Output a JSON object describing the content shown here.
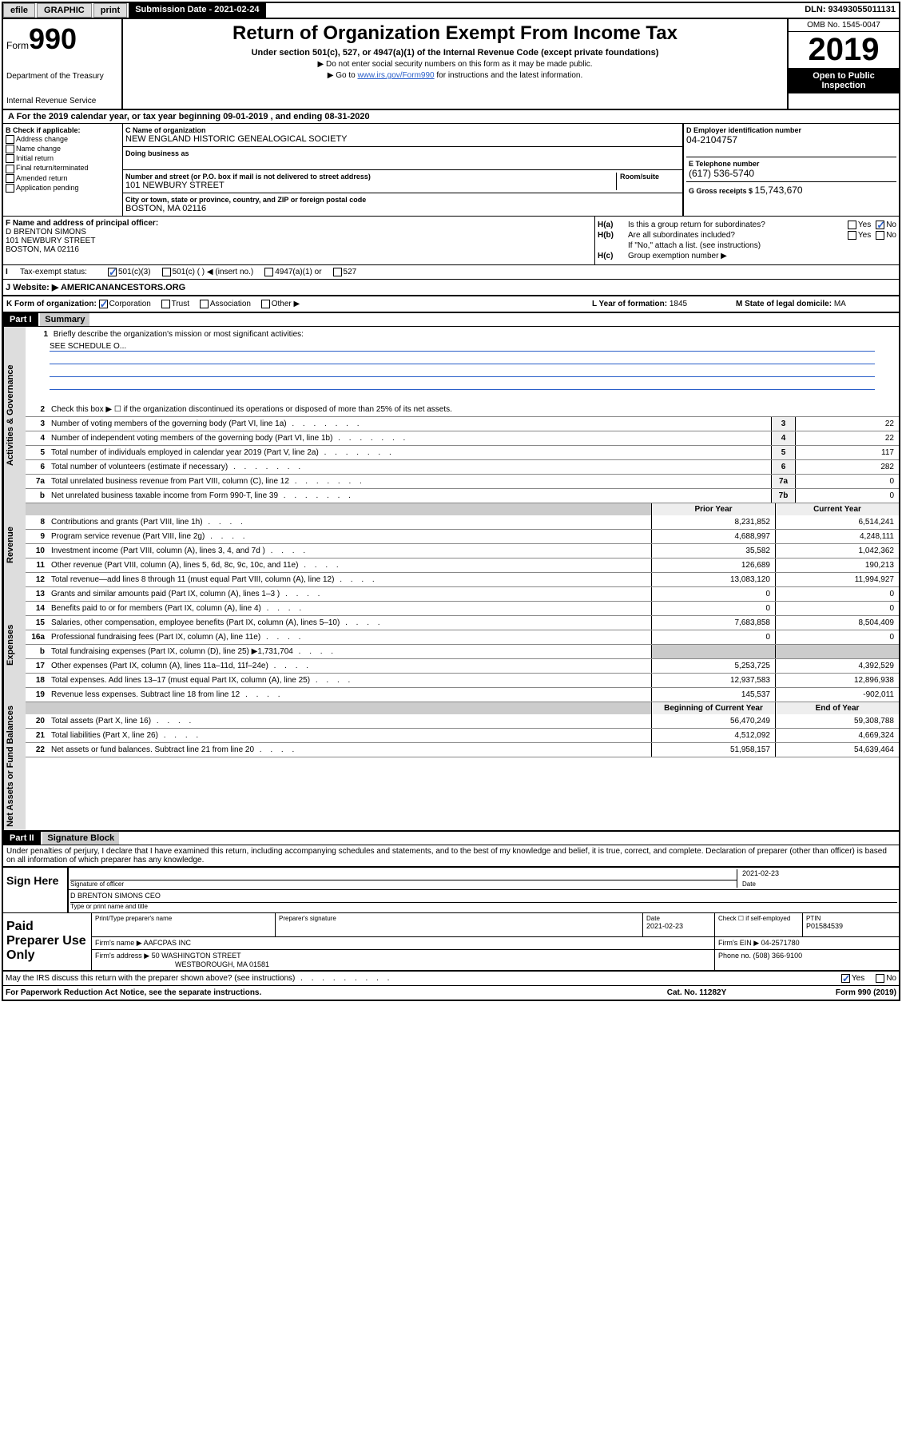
{
  "header": {
    "efile": "efile",
    "graphic_btn": "GRAPHIC",
    "print_btn": "print",
    "submission_label": "Submission Date - 2021-02-24",
    "dln": "DLN: 93493055011131"
  },
  "top": {
    "form_label": "Form",
    "form_no": "990",
    "title": "Return of Organization Exempt From Income Tax",
    "subtitle": "Under section 501(c), 527, or 4947(a)(1) of the Internal Revenue Code (except private foundations)",
    "instr1": "▶ Do not enter social security numbers on this form as it may be made public.",
    "instr2_pre": "▶ Go to ",
    "instr2_link": "www.irs.gov/Form990",
    "instr2_post": " for instructions and the latest information.",
    "dept1": "Department of the Treasury",
    "dept2": "Internal Revenue Service",
    "omb": "OMB No. 1545-0047",
    "year": "2019",
    "open1": "Open to Public",
    "open2": "Inspection"
  },
  "tax_year": {
    "text": "A For the 2019 calendar year, or tax year beginning 09-01-2019     , and ending 08-31-2020"
  },
  "section_b": {
    "label": "B Check if applicable:",
    "items": [
      "Address change",
      "Name change",
      "Initial return",
      "Final return/terminated",
      "Amended return",
      "Application pending"
    ]
  },
  "section_c": {
    "label": "C Name of organization",
    "name": "NEW ENGLAND HISTORIC GENEALOGICAL SOCIETY",
    "dba_label": "Doing business as",
    "addr_label": "Number and street (or P.O. box if mail is not delivered to street address)",
    "room_label": "Room/suite",
    "addr": "101 NEWBURY STREET",
    "city_label": "City or town, state or province, country, and ZIP or foreign postal code",
    "city": "BOSTON, MA  02116"
  },
  "section_d": {
    "label": "D Employer identification number",
    "value": "04-2104757"
  },
  "section_e": {
    "label": "E Telephone number",
    "value": "(617) 536-5740"
  },
  "section_g": {
    "label": "G Gross receipts $ ",
    "value": "15,743,670"
  },
  "section_f": {
    "label": "F  Name and address of principal officer:",
    "name": "D BRENTON SIMONS",
    "addr1": "101 NEWBURY STREET",
    "addr2": "BOSTON, MA  02116"
  },
  "section_h": {
    "ha_label": "H(a)",
    "ha_text": "Is this a group return for subordinates?",
    "hb_label": "H(b)",
    "hb_text": "Are all subordinates included?",
    "hb_note": "If \"No,\" attach a list. (see instructions)",
    "hc_label": "H(c)",
    "hc_text": "Group exemption number ▶",
    "yes": "Yes",
    "no": "No"
  },
  "tax_status": {
    "label_i": "I",
    "label": "Tax-exempt status:",
    "opt1": "501(c)(3)",
    "opt2": "501(c) (   ) ◀ (insert no.)",
    "opt3": "4947(a)(1) or",
    "opt4": "527"
  },
  "website": {
    "label": "J     Website: ▶",
    "value": "AMERICANANCESTORS.ORG"
  },
  "klm": {
    "k_label": "K Form of organization:",
    "k_corp": "Corporation",
    "k_trust": "Trust",
    "k_assoc": "Association",
    "k_other": "Other ▶",
    "l_label": "L Year of formation: ",
    "l_value": "1845",
    "m_label": "M State of legal domicile: ",
    "m_value": "MA"
  },
  "part1": {
    "header": "Part I",
    "title": "Summary"
  },
  "summary": {
    "sides": [
      "Activities & Governance",
      "Revenue",
      "Expenses",
      "Net Assets or Fund Balances"
    ],
    "line1_text": "Briefly describe the organization's mission or most significant activities:",
    "line1_val": "SEE SCHEDULE O...",
    "line2_text": "Check this box ▶ ☐  if the organization discontinued its operations or disposed of more than 25% of its net assets.",
    "lines_num": [
      {
        "no": "3",
        "text": "Number of voting members of the governing body (Part VI, line 1a)",
        "box": "3",
        "val": "22"
      },
      {
        "no": "4",
        "text": "Number of independent voting members of the governing body (Part VI, line 1b)",
        "box": "4",
        "val": "22"
      },
      {
        "no": "5",
        "text": "Total number of individuals employed in calendar year 2019 (Part V, line 2a)",
        "box": "5",
        "val": "117"
      },
      {
        "no": "6",
        "text": "Total number of volunteers (estimate if necessary)",
        "box": "6",
        "val": "282"
      },
      {
        "no": "7a",
        "text": "Total unrelated business revenue from Part VIII, column (C), line 12",
        "box": "7a",
        "val": "0"
      },
      {
        "no": "b",
        "text": "Net unrelated business taxable income from Form 990-T, line 39",
        "box": "7b",
        "val": "0"
      }
    ],
    "prior_hdr": "Prior Year",
    "current_hdr": "Current Year",
    "rev_lines": [
      {
        "no": "8",
        "text": "Contributions and grants (Part VIII, line 1h)",
        "prior": "8,231,852",
        "curr": "6,514,241"
      },
      {
        "no": "9",
        "text": "Program service revenue (Part VIII, line 2g)",
        "prior": "4,688,997",
        "curr": "4,248,111"
      },
      {
        "no": "10",
        "text": "Investment income (Part VIII, column (A), lines 3, 4, and 7d )",
        "prior": "35,582",
        "curr": "1,042,362"
      },
      {
        "no": "11",
        "text": "Other revenue (Part VIII, column (A), lines 5, 6d, 8c, 9c, 10c, and 11e)",
        "prior": "126,689",
        "curr": "190,213"
      },
      {
        "no": "12",
        "text": "Total revenue—add lines 8 through 11 (must equal Part VIII, column (A), line 12)",
        "prior": "13,083,120",
        "curr": "11,994,927"
      }
    ],
    "exp_lines": [
      {
        "no": "13",
        "text": "Grants and similar amounts paid (Part IX, column (A), lines 1–3 )",
        "prior": "0",
        "curr": "0"
      },
      {
        "no": "14",
        "text": "Benefits paid to or for members (Part IX, column (A), line 4)",
        "prior": "0",
        "curr": "0"
      },
      {
        "no": "15",
        "text": "Salaries, other compensation, employee benefits (Part IX, column (A), lines 5–10)",
        "prior": "7,683,858",
        "curr": "8,504,409"
      },
      {
        "no": "16a",
        "text": "Professional fundraising fees (Part IX, column (A), line 11e)",
        "prior": "0",
        "curr": "0"
      },
      {
        "no": "b",
        "text": "Total fundraising expenses (Part IX, column (D), line 25) ▶1,731,704",
        "prior": "",
        "curr": "",
        "shaded": true
      },
      {
        "no": "17",
        "text": "Other expenses (Part IX, column (A), lines 11a–11d, 11f–24e)",
        "prior": "5,253,725",
        "curr": "4,392,529"
      },
      {
        "no": "18",
        "text": "Total expenses. Add lines 13–17 (must equal Part IX, column (A), line 25)",
        "prior": "12,937,583",
        "curr": "12,896,938"
      },
      {
        "no": "19",
        "text": "Revenue less expenses. Subtract line 18 from line 12",
        "prior": "145,537",
        "curr": "-902,011"
      }
    ],
    "begin_hdr": "Beginning of Current Year",
    "end_hdr": "End of Year",
    "net_lines": [
      {
        "no": "20",
        "text": "Total assets (Part X, line 16)",
        "prior": "56,470,249",
        "curr": "59,308,788"
      },
      {
        "no": "21",
        "text": "Total liabilities (Part X, line 26)",
        "prior": "4,512,092",
        "curr": "4,669,324"
      },
      {
        "no": "22",
        "text": "Net assets or fund balances. Subtract line 21 from line 20",
        "prior": "51,958,157",
        "curr": "54,639,464"
      }
    ]
  },
  "part2": {
    "header": "Part II",
    "title": "Signature Block",
    "perjury": "Under penalties of perjury, I declare that I have examined this return, including accompanying schedules and statements, and to the best of my knowledge and belief, it is true, correct, and complete. Declaration of preparer (other than officer) is based on all information of which preparer has any knowledge."
  },
  "sign": {
    "label": "Sign Here",
    "sig_label": "Signature of officer",
    "date": "2021-02-23",
    "date_label": "Date",
    "name": "D BRENTON SIMONS CEO",
    "name_label": "Type or print name and title"
  },
  "preparer": {
    "label": "Paid Preparer Use Only",
    "col1": "Print/Type preparer's name",
    "col2": "Preparer's signature",
    "col3": "Date",
    "col3_val": "2021-02-23",
    "col4": "Check ☐ if self-employed",
    "col5": "PTIN",
    "col5_val": "P01584539",
    "firm_name_label": "Firm's name     ▶ ",
    "firm_name": "AAFCPAS INC",
    "firm_ein_label": "Firm's EIN ▶ ",
    "firm_ein": "04-2571780",
    "firm_addr_label": "Firm's address ▶ ",
    "firm_addr1": "50 WASHINGTON STREET",
    "firm_addr2": "WESTBOROUGH, MA  01581",
    "phone_label": "Phone no. ",
    "phone": "(508) 366-9100"
  },
  "discuss": {
    "text": "May the IRS discuss this return with the preparer shown above? (see instructions)",
    "yes": "Yes",
    "no": "No"
  },
  "footer": {
    "left": "For Paperwork Reduction Act Notice, see the separate instructions.",
    "center": "Cat. No. 11282Y",
    "right": "Form 990 (2019)"
  },
  "colors": {
    "link": "#2b5fc9",
    "black": "#000000",
    "gray_bg": "#dddddd"
  }
}
